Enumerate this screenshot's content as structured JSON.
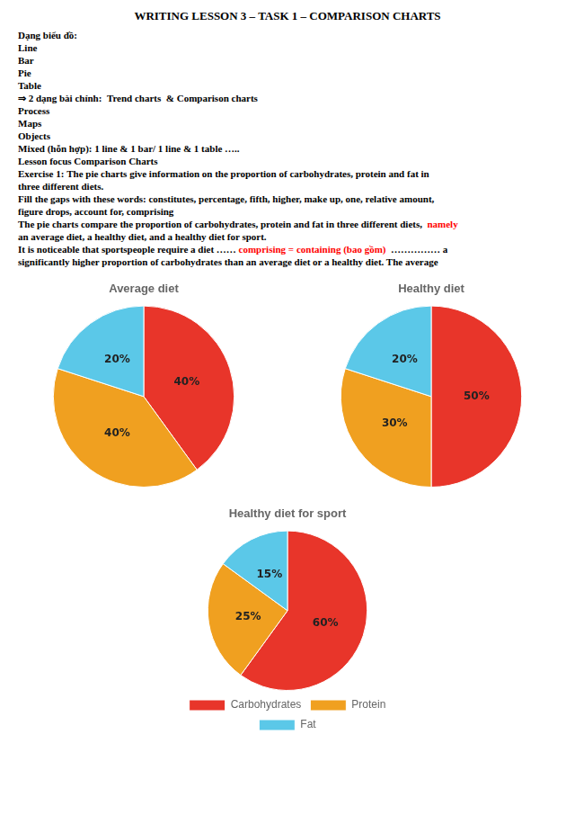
{
  "title": "WRITING LESSON 3 – TASK 1 – COMPARISON CHARTS",
  "annotations": [
    [
      "Dạng biểu đồ:"
    ],
    [
      "Line"
    ],
    [
      "Bar"
    ],
    [
      "Pie"
    ],
    [
      "Table"
    ],
    [
      "⇒  2 dạng bài chính: ",
      "Trend charts",
      " & Comparison charts"
    ],
    [
      "Process"
    ],
    [
      "Maps"
    ],
    [
      "Objects"
    ],
    [
      "Mixed (hỗn hợp): 1 line & 1 bar/ 1 line & 1 table ….."
    ],
    [
      "Lesson focus",
      "Comparison Charts"
    ],
    [
      "Exercise 1:",
      "The pie charts give information on the proportion of carbohydrates, protein and fat in\nthree different diets."
    ],
    [
      "Fill the gaps with these words:",
      "constitutes, percentage, fifth, higher, make up, one, relative amount,"
    ],
    [
      "figure drops, account for, comprising"
    ],
    [
      "The pie charts compare the proportion of carbohydrates, protein and fat in three different diets, ",
      {
        "text": "namely",
        "color": "red"
      }
    ],
    [
      "an average diet, a healthy diet, and a healthy diet for sport."
    ],
    [
      "It is noticeable that sportspeople require a diet ……",
      {
        "text": "comprising = containing (bao gồm)",
        "color": "red"
      },
      " …………… a"
    ],
    [
      "significantly higher proportion of carbohydrates than an average diet or a healthy diet. The average"
    ]
  ],
  "chart_data": [
    {
      "type": "pie",
      "title": "Average diet",
      "categories": [
        "Carbohydrates",
        "Protein",
        "Fat"
      ],
      "values": [
        40,
        40,
        20
      ],
      "value_labels": [
        "40%",
        "40%",
        "20%"
      ],
      "colors": [
        "#e8352a",
        "#f0a020",
        "#5bc8e8"
      ],
      "data_labels": true
    },
    {
      "type": "pie",
      "title": "Healthy diet",
      "categories": [
        "Carbohydrates",
        "Protein",
        "Fat"
      ],
      "values": [
        50,
        30,
        20
      ],
      "value_labels": [
        "50%",
        "30%",
        "20%"
      ],
      "colors": [
        "#e8352a",
        "#f0a020",
        "#5bc8e8"
      ],
      "data_labels": true
    },
    {
      "type": "pie",
      "title": "Healthy diet for sport",
      "categories": [
        "Carbohydrates",
        "Protein",
        "Fat"
      ],
      "values": [
        60,
        25,
        15
      ],
      "value_labels": [
        "60%",
        "25%",
        "15%"
      ],
      "colors": [
        "#e8352a",
        "#f0a020",
        "#5bc8e8"
      ],
      "data_labels": true,
      "legend": "bottom"
    }
  ]
}
